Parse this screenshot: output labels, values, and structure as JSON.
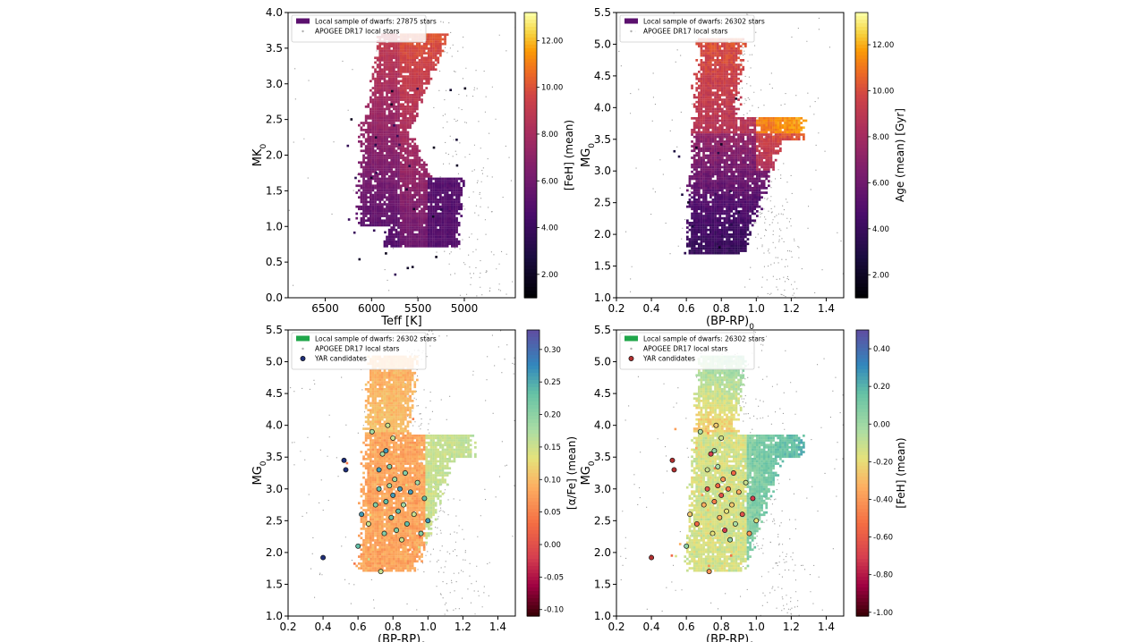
{
  "chart_data": [
    {
      "type": "heatmap",
      "panel": "top-left",
      "xlabel": "Teff [K]",
      "ylabel": "MK",
      "ylabel_sub": "0",
      "xlim": [
        6900,
        4450
      ],
      "ylim": [
        4.0,
        0.0
      ],
      "x_ticks": [
        6500,
        6000,
        5500,
        5000
      ],
      "y_ticks": [
        0.0,
        0.5,
        1.0,
        1.5,
        2.0,
        2.5,
        3.0,
        3.5,
        4.0
      ],
      "y_tick_decimals": 1,
      "legend_placement": "top-left",
      "legend": [
        {
          "label": "Local sample of dwarfs: 27875 stars",
          "marker": "patch",
          "color": "#5b106e"
        },
        {
          "label": "APOGEE DR17 local stars",
          "marker": "dot",
          "color": "#b0b0b0"
        }
      ],
      "colorbar": {
        "label": "[FeH] (mean)",
        "colormap": "inferno",
        "range": [
          1.0,
          13.2
        ],
        "ticks": [
          2.0,
          4.0,
          6.0,
          8.0,
          10.0,
          12.0
        ]
      },
      "background_cloud": {
        "name": "APOGEE DR17 local stars",
        "color": "#9a9a9a"
      },
      "main_sequence_track": {
        "x": [
          5150,
          5170,
          5250,
          5400,
          5560,
          5620,
          5630,
          5580,
          5470,
          5340,
          5230
        ],
        "y": [
          0.85,
          1.2,
          1.6,
          1.95,
          2.3,
          2.6,
          2.85,
          3.1,
          3.35,
          3.55,
          3.7
        ]
      },
      "turnoff_track": {
        "x": [
          6300,
          6250,
          6150,
          6050,
          5950,
          5850,
          5750,
          5600,
          5450
        ],
        "y": [
          2.6,
          2.4,
          2.2,
          2.0,
          1.8,
          1.6,
          1.4,
          1.2,
          1.0
        ]
      },
      "color_trend": "blue-to-red range low values at the upper-left turnoff region, higher values along the lower main sequence"
    },
    {
      "type": "heatmap",
      "panel": "top-right",
      "xlabel": "(BP-RP)",
      "xlabel_sub": "0",
      "ylabel": "MG",
      "ylabel_sub": "0",
      "xlim": [
        0.2,
        1.5
      ],
      "ylim": [
        5.5,
        1.0
      ],
      "x_ticks": [
        0.2,
        0.4,
        0.6,
        0.8,
        1.0,
        1.2,
        1.4
      ],
      "y_ticks": [
        1.0,
        1.5,
        2.0,
        2.5,
        3.0,
        3.5,
        4.0,
        4.5,
        5.0,
        5.5
      ],
      "x_tick_decimals": 1,
      "y_tick_decimals": 1,
      "legend_placement": "top-left",
      "legend": [
        {
          "label": "Local sample of dwarfs: 26302 stars",
          "marker": "patch",
          "color": "#5b106e"
        },
        {
          "label": "APOGEE DR17 local stars",
          "marker": "dot",
          "color": "#b0b0b0"
        }
      ],
      "colorbar": {
        "label": "Age (mean) [Gyr]",
        "colormap": "inferno",
        "range": [
          1.0,
          13.4
        ],
        "ticks": [
          2.0,
          4.0,
          6.0,
          8.0,
          10.0,
          12.0
        ]
      },
      "background_cloud": {
        "name": "APOGEE DR17 local stars",
        "color": "#9a9a9a"
      },
      "color_trend": "young stars at bright turnoff region, older stars towards faint main sequence and subgiant branch"
    },
    {
      "type": "heatmap",
      "panel": "bottom-left",
      "xlabel": "(BP-RP)",
      "xlabel_sub": "0",
      "ylabel": "MG",
      "ylabel_sub": "0",
      "xlim": [
        0.2,
        1.5
      ],
      "ylim": [
        5.5,
        1.0
      ],
      "x_ticks": [
        0.2,
        0.4,
        0.6,
        0.8,
        1.0,
        1.2,
        1.4
      ],
      "y_ticks": [
        1.0,
        1.5,
        2.0,
        2.5,
        3.0,
        3.5,
        4.0,
        4.5,
        5.0,
        5.5
      ],
      "x_tick_decimals": 1,
      "y_tick_decimals": 1,
      "legend_placement": "top-left",
      "legend": [
        {
          "label": "Local sample of dwarfs: 26302 stars",
          "marker": "patch",
          "color": "#1fa64a"
        },
        {
          "label": "APOGEE DR17 local stars",
          "marker": "dot",
          "color": "#b0b0b0"
        },
        {
          "label": "YAR candidates",
          "marker": "circle",
          "color": "#1f2f7a"
        }
      ],
      "colorbar": {
        "label": "[α/Fe] (mean)",
        "colormap": "spectral_r",
        "range": [
          -0.11,
          0.33
        ],
        "ticks": [
          -0.1,
          -0.05,
          0.0,
          0.05,
          0.1,
          0.15,
          0.2,
          0.25,
          0.3
        ]
      },
      "background_cloud": {
        "name": "APOGEE DR17 local stars",
        "color": "#9a9a9a"
      },
      "yar_candidates": {
        "x": [
          0.4,
          0.52,
          0.53,
          0.6,
          0.62,
          0.66,
          0.68,
          0.7,
          0.72,
          0.72,
          0.73,
          0.74,
          0.75,
          0.76,
          0.76,
          0.77,
          0.78,
          0.78,
          0.79,
          0.8,
          0.8,
          0.81,
          0.82,
          0.83,
          0.84,
          0.85,
          0.86,
          0.87,
          0.88,
          0.9,
          0.92,
          0.94,
          0.96,
          0.98,
          1.0
        ],
        "y": [
          1.92,
          3.45,
          3.3,
          2.1,
          2.6,
          2.45,
          3.9,
          2.75,
          3.0,
          3.3,
          1.7,
          3.55,
          2.3,
          2.8,
          3.6,
          4.0,
          3.05,
          3.35,
          2.55,
          2.9,
          3.8,
          3.15,
          2.35,
          2.65,
          3.0,
          2.2,
          2.75,
          3.25,
          2.45,
          2.95,
          2.6,
          3.1,
          2.3,
          2.85,
          2.5
        ]
      },
      "color_trend": "high alpha at faint red main sequence (orange), low alpha at bright blue turnoff (teal)"
    },
    {
      "type": "heatmap",
      "panel": "bottom-right",
      "xlabel": "(BP-RP)",
      "xlabel_sub": "0",
      "ylabel": "MG",
      "ylabel_sub": "0",
      "xlim": [
        0.2,
        1.5
      ],
      "ylim": [
        5.5,
        1.0
      ],
      "x_ticks": [
        0.2,
        0.4,
        0.6,
        0.8,
        1.0,
        1.2,
        1.4
      ],
      "y_ticks": [
        1.0,
        1.5,
        2.0,
        2.5,
        3.0,
        3.5,
        4.0,
        4.5,
        5.0,
        5.5
      ],
      "x_tick_decimals": 1,
      "y_tick_decimals": 1,
      "legend_placement": "top-left",
      "legend": [
        {
          "label": "Local sample of dwarfs: 26302 stars",
          "marker": "patch",
          "color": "#1fa64a"
        },
        {
          "label": "APOGEE DR17 local stars",
          "marker": "dot",
          "color": "#b0b0b0"
        },
        {
          "label": "YAR candidates",
          "marker": "circle",
          "color": "#b23030"
        }
      ],
      "colorbar": {
        "label": "[FeH] (mean)",
        "colormap": "spectral",
        "range": [
          -1.02,
          0.5
        ],
        "ticks": [
          -1.0,
          -0.8,
          -0.6,
          -0.4,
          -0.2,
          0.0,
          0.2,
          0.4
        ]
      },
      "background_cloud": {
        "name": "APOGEE DR17 local stars",
        "color": "#9a9a9a"
      },
      "yar_candidates": {
        "x": [
          0.4,
          0.52,
          0.53,
          0.6,
          0.62,
          0.66,
          0.68,
          0.7,
          0.72,
          0.72,
          0.73,
          0.74,
          0.75,
          0.76,
          0.76,
          0.77,
          0.78,
          0.78,
          0.79,
          0.8,
          0.8,
          0.81,
          0.82,
          0.83,
          0.84,
          0.85,
          0.86,
          0.87,
          0.88,
          0.9,
          0.92,
          0.94,
          0.96,
          0.98,
          1.0
        ],
        "y": [
          1.92,
          3.45,
          3.3,
          2.1,
          2.6,
          2.45,
          3.9,
          2.75,
          3.0,
          3.3,
          1.7,
          3.55,
          2.3,
          2.8,
          3.6,
          4.0,
          3.05,
          3.35,
          2.55,
          2.9,
          3.8,
          3.15,
          2.35,
          2.65,
          3.0,
          2.2,
          2.75,
          3.25,
          2.45,
          2.95,
          2.6,
          3.1,
          2.3,
          2.85,
          2.5
        ]
      },
      "color_trend": "metal-rich (blue) on the red main sequence, metal-poor (yellow/orange) at blue turnoff"
    }
  ]
}
